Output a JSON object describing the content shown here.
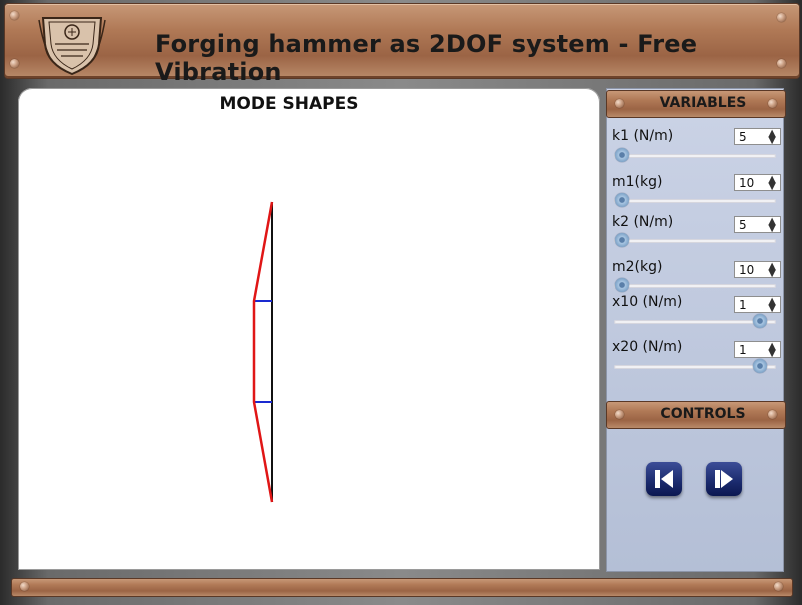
{
  "header": {
    "title": "Forging hammer as 2DOF system - Free Vibration",
    "logo_icon": "institute-seal-logo"
  },
  "canvas": {
    "title": "MODE SHAPES",
    "mode_shape": {
      "colors": {
        "line": "#e01616",
        "axis": "#111111",
        "markers": "#1a2ad0"
      }
    }
  },
  "variables": {
    "heading": "VARIABLES",
    "items": [
      {
        "label": "k1 (N/m)",
        "value": "5",
        "slider_fraction": 0.0
      },
      {
        "label": "m1(kg)",
        "value": "10",
        "slider_fraction": 0.0
      },
      {
        "label": "k2 (N/m)",
        "value": "5",
        "slider_fraction": 0.0
      },
      {
        "label": "m2(kg)",
        "value": "10",
        "slider_fraction": 0.0
      },
      {
        "label": "x10 (N/m)",
        "value": "1",
        "slider_fraction": 0.93
      },
      {
        "label": "x20 (N/m)",
        "value": "1",
        "slider_fraction": 0.93
      }
    ]
  },
  "controls": {
    "heading": "CONTROLS",
    "buttons": [
      {
        "name": "step-back-button",
        "icon": "step-back-icon"
      },
      {
        "name": "step-forward-button",
        "icon": "step-forward-icon"
      }
    ]
  }
}
